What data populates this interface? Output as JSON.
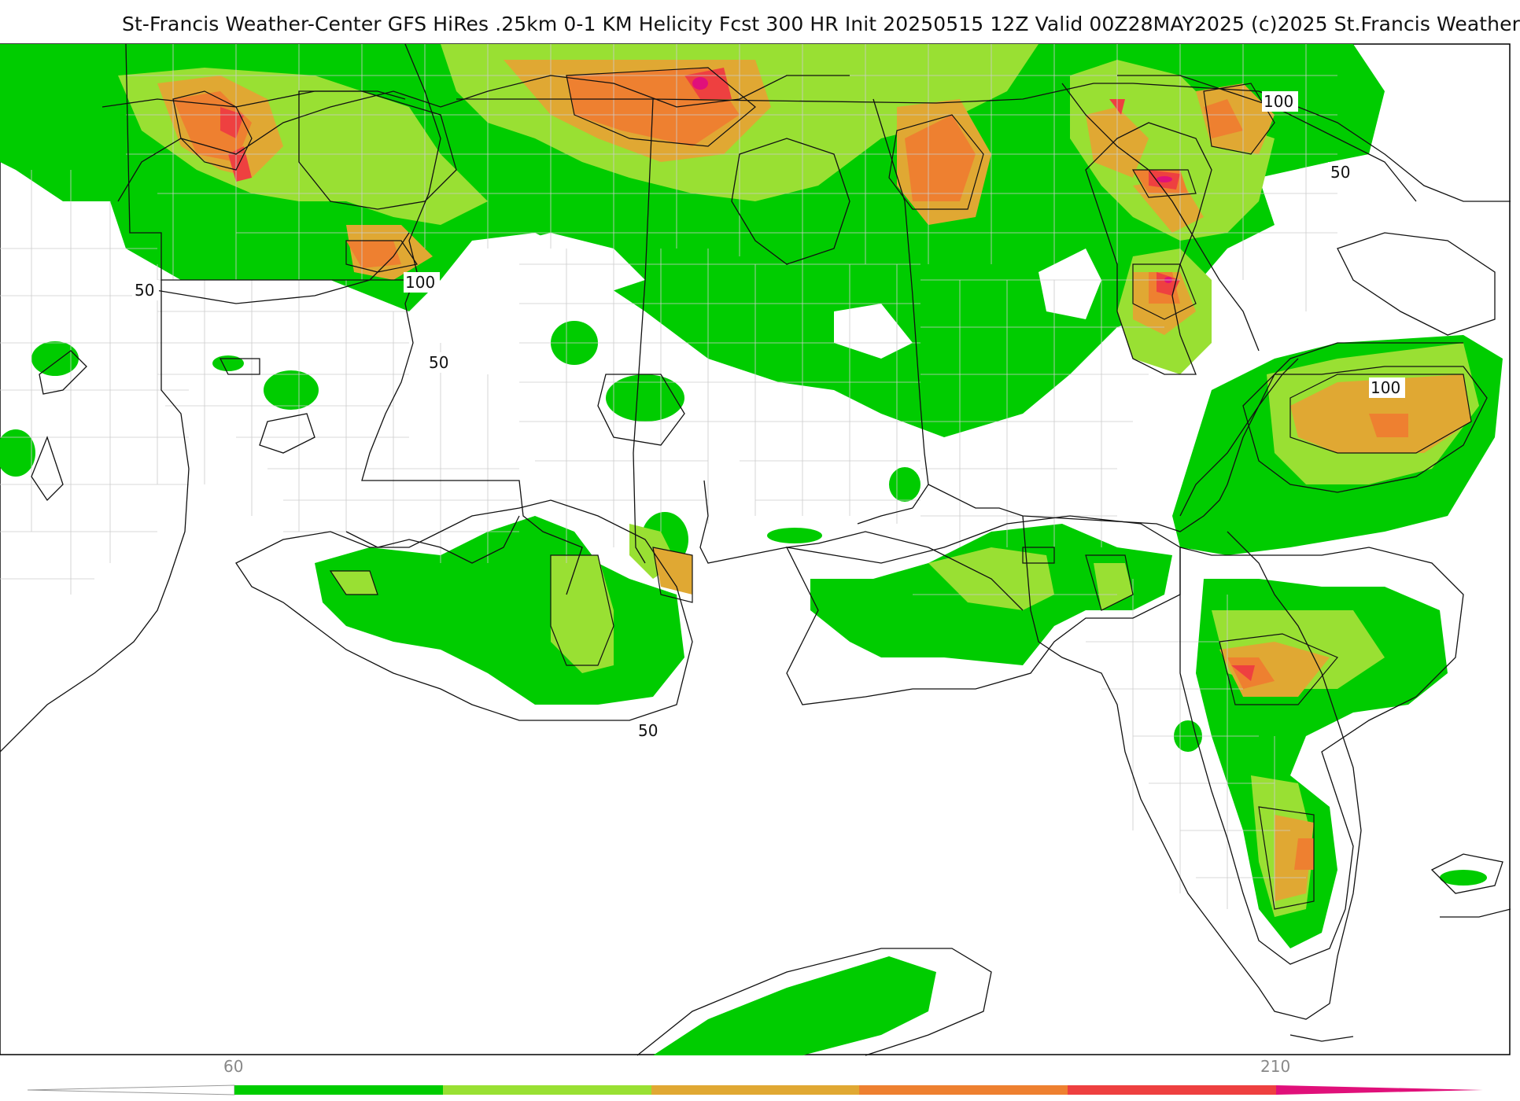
{
  "header": {
    "title": "St-Francis Weather-Center GFS HiRes .25km 0-1 KM Helicity Fcst 300 HR Init 20250515 12Z  Valid 00Z28MAY2025    (c)2025 St.Francis Weather"
  },
  "map": {
    "contour_labels": [
      {
        "id": "c1",
        "text": "50"
      },
      {
        "id": "c2",
        "text": "100"
      },
      {
        "id": "c3",
        "text": "50"
      },
      {
        "id": "c4",
        "text": "100"
      },
      {
        "id": "c5",
        "text": "50"
      },
      {
        "id": "c6",
        "text": "100"
      },
      {
        "id": "c7",
        "text": "50"
      }
    ],
    "fill_colors": {
      "band_60_90": "#00cc00",
      "band_90_120": "#99e033",
      "band_120_150": "#e0a833",
      "band_150_180": "#ee8030",
      "band_180_210": "#ee4040",
      "band_210_plus": "#e0107a"
    }
  },
  "legend": {
    "tick_labels": [
      "60",
      "210"
    ],
    "segments": [
      "#00cc00",
      "#99e033",
      "#e0a833",
      "#ee8030",
      "#ee4040",
      "#e0107a"
    ]
  }
}
